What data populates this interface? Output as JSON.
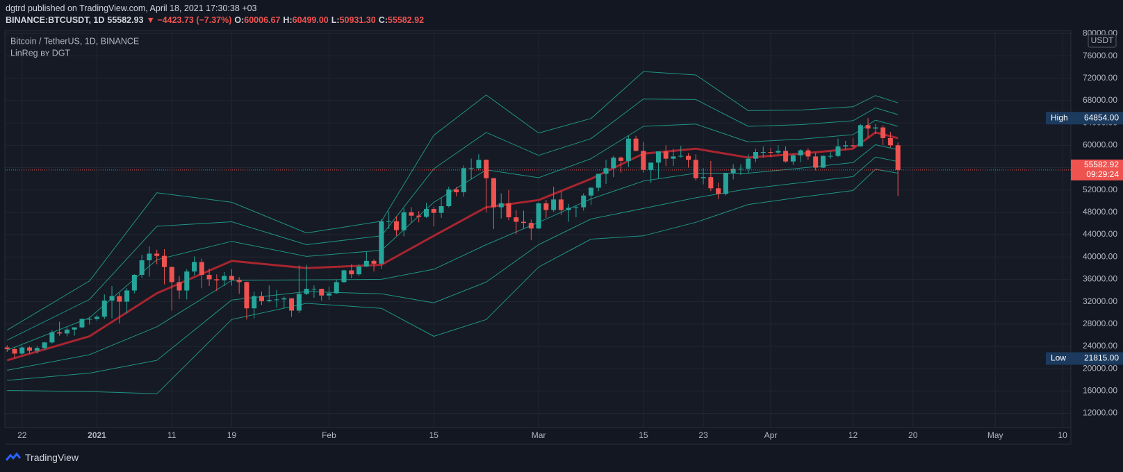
{
  "header": {
    "publisher": "dgtrd published on TradingView.com, April 18, 2021 17:30:38 +03",
    "symbol": "BINANCE:BTCUSDT, 1D",
    "price": "55582.93",
    "change": "▼ −4423.73 (−7.37%)",
    "ohlc": [
      {
        "key": "O:",
        "value": "60006.67"
      },
      {
        "key": "H:",
        "value": "60499.00"
      },
      {
        "key": "L:",
        "value": "50931.30"
      },
      {
        "key": "C:",
        "value": "55582.92"
      }
    ]
  },
  "chart_data": {
    "type": "candlestick",
    "title": "Bitcoin / TetherUS, 1D, BINANCE",
    "indicator": "LinReg ʙʏ DGT",
    "currency": "USDT",
    "up_color": "#26a69a",
    "down_color": "#ef5350",
    "open": [
      23800,
      23500,
      22700,
      23800,
      23200,
      23700,
      24700,
      26500,
      26300,
      27000,
      27400,
      28900,
      28900,
      29300,
      32200,
      33000,
      32000,
      34000,
      36800,
      39400,
      40600,
      40200,
      38200,
      35500,
      34000,
      37400,
      39100,
      36800,
      36000,
      35800,
      36600,
      35900,
      35500,
      30800,
      33000,
      32100,
      32300,
      32400,
      32600,
      30400,
      33400,
      34300,
      34300,
      33100,
      33500,
      35500,
      37600,
      36900,
      38300,
      39300,
      38800,
      46400,
      46400,
      44800,
      48000,
      47400,
      47200,
      48600,
      47900,
      49100,
      52100,
      51600,
      55900,
      55900,
      57400,
      54100,
      48900,
      49600,
      47100,
      46300,
      46100,
      45100,
      49600,
      48400,
      50300,
      48400,
      48800,
      48900,
      51000,
      52400,
      54900,
      55900,
      57800,
      57200,
      61200,
      59000,
      55600,
      56900,
      58900,
      57600,
      58000,
      58100,
      57400,
      54100,
      54300,
      52300,
      51300,
      55000,
      55800,
      55800,
      57600,
      58800,
      58800,
      58700,
      59000,
      57100,
      58200,
      59100,
      58000,
      56000,
      58100,
      58100,
      59800,
      60000,
      59800,
      63600,
      63000,
      63200,
      61300,
      60006.67
    ],
    "high": [
      24200,
      23700,
      24100,
      24000,
      24100,
      24800,
      26900,
      28400,
      27400,
      27400,
      29000,
      29300,
      29600,
      33300,
      34800,
      33600,
      34400,
      36900,
      40400,
      41900,
      41300,
      41400,
      38300,
      36600,
      37800,
      40100,
      39700,
      37900,
      36900,
      37300,
      37800,
      36400,
      35600,
      33800,
      33800,
      34900,
      34100,
      32900,
      32600,
      38500,
      38600,
      34900,
      34300,
      34700,
      35900,
      37700,
      38700,
      38700,
      40900,
      39600,
      46800,
      48200,
      47300,
      48700,
      48900,
      48200,
      49700,
      49000,
      50700,
      52600,
      52500,
      56400,
      57600,
      58400,
      57500,
      54200,
      51400,
      52000,
      48400,
      48300,
      46700,
      49800,
      50200,
      52600,
      51800,
      49500,
      49200,
      51400,
      52500,
      54900,
      57400,
      58100,
      58000,
      61800,
      61700,
      60600,
      56900,
      58900,
      60000,
      59400,
      59900,
      58600,
      58400,
      55900,
      57200,
      53300,
      55100,
      56600,
      56600,
      58400,
      59400,
      59800,
      59500,
      60000,
      59800,
      58500,
      59300,
      59500,
      58700,
      58200,
      58900,
      61200,
      60800,
      61300,
      63800,
      64854,
      63800,
      63600,
      62400,
      60499
    ],
    "low": [
      23000,
      21815,
      22400,
      22700,
      22700,
      23400,
      24500,
      25900,
      25800,
      25900,
      27300,
      27900,
      28600,
      28900,
      29000,
      28100,
      29900,
      33500,
      36300,
      36500,
      38700,
      35100,
      30400,
      32500,
      32400,
      36700,
      34400,
      34800,
      33900,
      34800,
      34900,
      33400,
      28800,
      29000,
      31400,
      31900,
      30900,
      30800,
      29300,
      30000,
      33200,
      32700,
      32200,
      32300,
      33400,
      35400,
      36200,
      36600,
      38200,
      37400,
      37900,
      45000,
      43800,
      43700,
      46200,
      46200,
      47000,
      45500,
      47000,
      48900,
      50900,
      50800,
      53900,
      55500,
      48000,
      45000,
      46900,
      46600,
      44100,
      45100,
      43000,
      45000,
      47000,
      48100,
      47500,
      46300,
      47100,
      48300,
      49300,
      51800,
      53100,
      54300,
      55100,
      56100,
      58900,
      55100,
      53300,
      54100,
      56300,
      56300,
      57800,
      56000,
      53700,
      53000,
      51800,
      50400,
      51000,
      53900,
      54700,
      54900,
      57000,
      57800,
      57900,
      58400,
      56900,
      56500,
      57000,
      57400,
      55500,
      55900,
      57600,
      57900,
      59200,
      59400,
      59800,
      61300,
      62000,
      60000,
      59600,
      50931.3
    ],
    "close": [
      23500,
      22700,
      23800,
      23200,
      23700,
      24700,
      26500,
      26300,
      27000,
      27400,
      28900,
      28900,
      29300,
      32200,
      33000,
      32000,
      34000,
      36800,
      39400,
      40600,
      40200,
      38200,
      35500,
      34000,
      37400,
      39100,
      36800,
      36000,
      35800,
      36600,
      35900,
      35500,
      30800,
      33000,
      32100,
      32300,
      32400,
      32600,
      30400,
      33400,
      34300,
      34300,
      33100,
      33500,
      35500,
      37600,
      36900,
      38300,
      39300,
      38800,
      46400,
      46400,
      44800,
      48000,
      47400,
      47200,
      48600,
      47900,
      49100,
      52100,
      51600,
      55900,
      55900,
      57400,
      54100,
      48900,
      49600,
      47100,
      46300,
      46100,
      45100,
      49600,
      48400,
      50300,
      48400,
      48800,
      48900,
      51000,
      52400,
      54900,
      55900,
      57800,
      57200,
      61200,
      59000,
      55600,
      56900,
      58900,
      57600,
      58000,
      58100,
      57400,
      54100,
      54300,
      52300,
      51300,
      55000,
      55800,
      55800,
      57600,
      58800,
      58800,
      58700,
      59000,
      57100,
      58200,
      59100,
      58000,
      56000,
      58100,
      58100,
      59800,
      60000,
      59800,
      63600,
      63000,
      63200,
      61300,
      60006.67,
      55582.92
    ],
    "band_x": [
      0,
      11,
      20,
      30,
      40,
      50,
      57,
      64,
      71,
      78,
      85,
      92,
      99,
      106,
      113,
      116,
      119
    ],
    "bands": [
      {
        "color": "#1f9484",
        "width": 1,
        "values": [
          16100,
          15900,
          15500,
          28800,
          31700,
          30800,
          25800,
          28800,
          38200,
          43200,
          43800,
          46200,
          49400,
          50700,
          51900,
          55700,
          55000
        ]
      },
      {
        "color": "#1f9484",
        "width": 1,
        "values": [
          17900,
          19200,
          21500,
          32300,
          33800,
          33400,
          31800,
          35500,
          42200,
          46800,
          48700,
          50600,
          52200,
          53300,
          54400,
          57900,
          57100
        ]
      },
      {
        "color": "#1f9484",
        "width": 1,
        "values": [
          19700,
          22500,
          27500,
          35800,
          35900,
          36000,
          37800,
          42200,
          46200,
          50400,
          53600,
          55000,
          55000,
          55900,
          56900,
          60100,
          59200
        ]
      },
      {
        "color": "#a8252f",
        "width": 3,
        "values": [
          21500,
          25800,
          33500,
          39300,
          38000,
          38600,
          43800,
          48900,
          50200,
          54000,
          58500,
          59400,
          57800,
          58500,
          59400,
          62300,
          61300
        ]
      },
      {
        "color": "#1f9484",
        "width": 1,
        "values": [
          23300,
          29100,
          39500,
          42800,
          40100,
          41200,
          49800,
          55600,
          54200,
          57600,
          63400,
          63800,
          60600,
          61100,
          61900,
          64500,
          63400
        ]
      },
      {
        "color": "#1f9484",
        "width": 1,
        "values": [
          25100,
          32400,
          45500,
          46300,
          42200,
          43800,
          55800,
          62300,
          58200,
          61200,
          68300,
          68200,
          63400,
          63700,
          64400,
          66700,
          65500
        ]
      },
      {
        "color": "#1f9484",
        "width": 1,
        "values": [
          26900,
          35700,
          51500,
          49800,
          44300,
          46400,
          61800,
          69000,
          62200,
          64800,
          73200,
          72600,
          66200,
          66300,
          66900,
          68900,
          67600
        ]
      }
    ],
    "xlim": [
      -0.3,
      142.1
    ],
    "xticks": [
      {
        "value": 2,
        "label": "22"
      },
      {
        "value": 12,
        "label": "2021"
      },
      {
        "value": 22,
        "label": "11"
      },
      {
        "value": 30,
        "label": "19"
      },
      {
        "value": 43,
        "label": "Feb"
      },
      {
        "value": 57,
        "label": "15"
      },
      {
        "value": 71,
        "label": "Mar"
      },
      {
        "value": 85,
        "label": "15"
      },
      {
        "value": 93,
        "label": "23"
      },
      {
        "value": 102,
        "label": "Apr"
      },
      {
        "value": 113,
        "label": "12"
      },
      {
        "value": 121,
        "label": "20"
      },
      {
        "value": 132,
        "label": "May"
      },
      {
        "value": 141,
        "label": "10"
      }
    ],
    "ylim": [
      9450,
      80550
    ],
    "yticks": [
      {
        "value": 12000,
        "label": "12000.00"
      },
      {
        "value": 16000,
        "label": "16000.00"
      },
      {
        "value": 20000,
        "label": "20000.00"
      },
      {
        "value": 24000,
        "label": "24000.00"
      },
      {
        "value": 28000,
        "label": "28000.00"
      },
      {
        "value": 32000,
        "label": "32000.00"
      },
      {
        "value": 36000,
        "label": "36000.00"
      },
      {
        "value": 40000,
        "label": "40000.00"
      },
      {
        "value": 44000,
        "label": "44000.00"
      },
      {
        "value": 48000,
        "label": "48000.00"
      },
      {
        "value": 52000,
        "label": "52000.00"
      },
      {
        "value": 56000,
        "label": "56000.00"
      },
      {
        "value": 60000,
        "label": "60000.00"
      },
      {
        "value": 64000,
        "label": "64000.00"
      },
      {
        "value": 68000,
        "label": "68000.00"
      },
      {
        "value": 72000,
        "label": "72000.00"
      },
      {
        "value": 76000,
        "label": "76000.00"
      },
      {
        "value": 80000,
        "label": "80000.00"
      }
    ],
    "grid": true,
    "markers": [
      {
        "name": "High",
        "value": 64854,
        "value_label": "64854.00"
      },
      {
        "name": "Low",
        "value": 21815,
        "value_label": "21815.00"
      }
    ],
    "last_price": {
      "value": 55582.92,
      "countdown": "09:29:24",
      "color": "#ef5350"
    }
  },
  "footer": {
    "brand": "TradingView"
  }
}
